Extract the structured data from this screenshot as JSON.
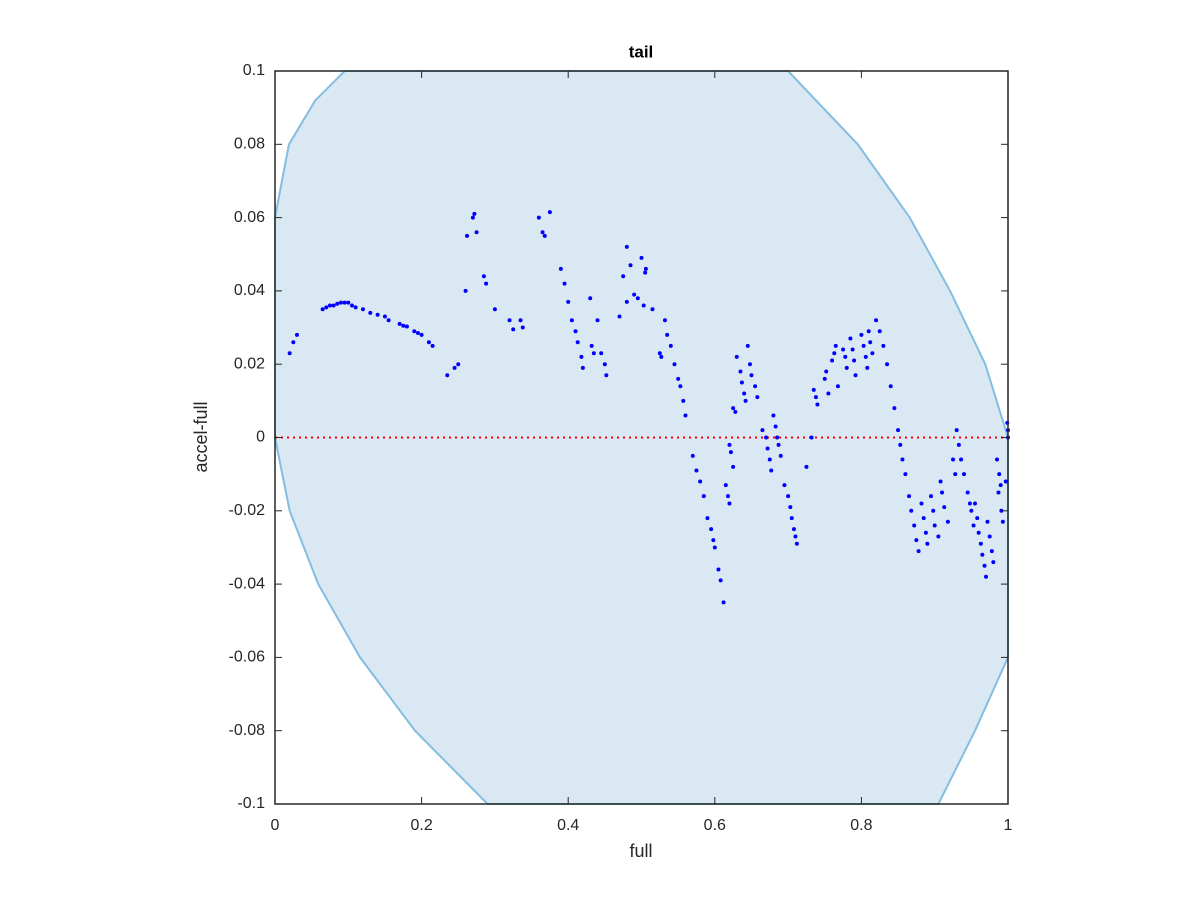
{
  "chart_data": {
    "type": "scatter",
    "title": "tail",
    "x_label": "full",
    "y_label": "accel-full",
    "xlim": [
      0,
      1
    ],
    "ylim": [
      -0.1,
      0.1
    ],
    "xticks": [
      0,
      0.2,
      0.4,
      0.6,
      0.8,
      1
    ],
    "yticks": [
      -0.1,
      -0.08,
      -0.06,
      -0.04,
      -0.02,
      0,
      0.02,
      0.04,
      0.06,
      0.08,
      0.1
    ],
    "reference_line": {
      "y": 0,
      "color": "#ff0000"
    },
    "region": {
      "color": "#d9e8f3",
      "edge_color": "#85bde0",
      "x": [
        0,
        0.019,
        0.055,
        0.095,
        0.7,
        0.795,
        0.866,
        0.921,
        0.969,
        1,
        1,
        0.955,
        0.905,
        0.29,
        0.191,
        0.116,
        0.059,
        0.02,
        0
      ],
      "y": [
        0.06,
        0.08,
        0.092,
        0.1,
        0.1,
        0.08,
        0.06,
        0.04,
        0.02,
        0,
        -0.06,
        -0.08,
        -0.1,
        -0.1,
        -0.08,
        -0.06,
        -0.04,
        -0.02,
        0
      ]
    },
    "series": [
      {
        "color": "#0000ff",
        "x": [
          0.02,
          0.025,
          0.03,
          0.065,
          0.07,
          0.075,
          0.08,
          0.085,
          0.09,
          0.095,
          0.1,
          0.105,
          0.11,
          0.12,
          0.13,
          0.14,
          0.15,
          0.155,
          0.17,
          0.175,
          0.18,
          0.19,
          0.195,
          0.2,
          0.21,
          0.215,
          0.235,
          0.245,
          0.25,
          0.26,
          0.262,
          0.27,
          0.272,
          0.275,
          0.285,
          0.288,
          0.3,
          0.32,
          0.325,
          0.335,
          0.338,
          0.36,
          0.365,
          0.368,
          0.375,
          0.39,
          0.395,
          0.4,
          0.405,
          0.41,
          0.413,
          0.418,
          0.42,
          0.43,
          0.432,
          0.435,
          0.44,
          0.445,
          0.45,
          0.452,
          0.47,
          0.475,
          0.48,
          0.485,
          0.48,
          0.49,
          0.495,
          0.5,
          0.505,
          0.506,
          0.503,
          0.515,
          0.525,
          0.527,
          0.532,
          0.535,
          0.54,
          0.545,
          0.55,
          0.553,
          0.557,
          0.56,
          0.57,
          0.575,
          0.58,
          0.585,
          0.59,
          0.595,
          0.598,
          0.6,
          0.605,
          0.608,
          0.612,
          0.615,
          0.618,
          0.62,
          0.62,
          0.625,
          0.628,
          0.622,
          0.625,
          0.63,
          0.635,
          0.637,
          0.64,
          0.642,
          0.645,
          0.648,
          0.65,
          0.655,
          0.658,
          0.665,
          0.67,
          0.672,
          0.675,
          0.677,
          0.68,
          0.683,
          0.685,
          0.687,
          0.69,
          0.695,
          0.7,
          0.703,
          0.705,
          0.708,
          0.71,
          0.712,
          0.725,
          0.732,
          0.735,
          0.738,
          0.74,
          0.75,
          0.752,
          0.755,
          0.76,
          0.763,
          0.765,
          0.768,
          0.775,
          0.778,
          0.78,
          0.785,
          0.788,
          0.79,
          0.792,
          0.8,
          0.803,
          0.806,
          0.808,
          0.81,
          0.812,
          0.815,
          0.82,
          0.825,
          0.83,
          0.835,
          0.84,
          0.845,
          0.85,
          0.853,
          0.856,
          0.86,
          0.865,
          0.868,
          0.872,
          0.875,
          0.878,
          0.882,
          0.885,
          0.888,
          0.89,
          0.895,
          0.898,
          0.9,
          0.905,
          0.908,
          0.91,
          0.913,
          0.918,
          0.925,
          0.928,
          0.93,
          0.933,
          0.936,
          0.94,
          0.945,
          0.948,
          0.95,
          0.953,
          0.955,
          0.958,
          0.96,
          0.963,
          0.965,
          0.968,
          0.97,
          0.972,
          0.975,
          0.978,
          0.98,
          0.985,
          0.988,
          0.99,
          0.987,
          0.991,
          0.993,
          0.997,
          0.999,
          1.0,
          1.0
        ],
        "y": [
          0.023,
          0.026,
          0.028,
          0.035,
          0.0355,
          0.036,
          0.036,
          0.0365,
          0.0368,
          0.0368,
          0.0368,
          0.036,
          0.0355,
          0.035,
          0.034,
          0.0335,
          0.033,
          0.032,
          0.031,
          0.0305,
          0.0303,
          0.029,
          0.0285,
          0.028,
          0.026,
          0.025,
          0.017,
          0.019,
          0.02,
          0.04,
          0.055,
          0.06,
          0.061,
          0.056,
          0.044,
          0.042,
          0.035,
          0.032,
          0.0295,
          0.032,
          0.03,
          0.06,
          0.056,
          0.055,
          0.0615,
          0.046,
          0.042,
          0.037,
          0.032,
          0.029,
          0.026,
          0.022,
          0.019,
          0.038,
          0.025,
          0.023,
          0.032,
          0.023,
          0.02,
          0.017,
          0.033,
          0.044,
          0.052,
          0.047,
          0.037,
          0.039,
          0.038,
          0.049,
          0.045,
          0.046,
          0.036,
          0.035,
          0.023,
          0.022,
          0.032,
          0.028,
          0.025,
          0.02,
          0.016,
          0.014,
          0.01,
          0.006,
          -0.005,
          -0.009,
          -0.012,
          -0.016,
          -0.022,
          -0.025,
          -0.028,
          -0.03,
          -0.036,
          -0.039,
          -0.045,
          -0.013,
          -0.016,
          -0.018,
          -0.002,
          0.008,
          0.007,
          -0.004,
          -0.008,
          0.022,
          0.018,
          0.015,
          0.012,
          0.01,
          0.025,
          0.02,
          0.017,
          0.014,
          0.011,
          0.002,
          0,
          -0.003,
          -0.006,
          -0.009,
          0.006,
          0.003,
          0,
          -0.002,
          -0.005,
          -0.013,
          -0.016,
          -0.019,
          -0.022,
          -0.025,
          -0.027,
          -0.029,
          -0.008,
          0,
          0.013,
          0.011,
          0.009,
          0.016,
          0.018,
          0.012,
          0.021,
          0.023,
          0.025,
          0.014,
          0.024,
          0.022,
          0.019,
          0.027,
          0.024,
          0.021,
          0.017,
          0.028,
          0.025,
          0.022,
          0.019,
          0.029,
          0.026,
          0.023,
          0.032,
          0.029,
          0.025,
          0.02,
          0.014,
          0.008,
          0.002,
          -0.002,
          -0.006,
          -0.01,
          -0.016,
          -0.02,
          -0.024,
          -0.028,
          -0.031,
          -0.018,
          -0.022,
          -0.026,
          -0.029,
          -0.016,
          -0.02,
          -0.024,
          -0.027,
          -0.012,
          -0.015,
          -0.019,
          -0.023,
          -0.006,
          -0.01,
          0.002,
          -0.002,
          -0.006,
          -0.01,
          -0.015,
          -0.018,
          -0.02,
          -0.024,
          -0.018,
          -0.022,
          -0.026,
          -0.029,
          -0.032,
          -0.035,
          -0.038,
          -0.023,
          -0.027,
          -0.031,
          -0.034,
          -0.006,
          -0.01,
          -0.013,
          -0.015,
          -0.02,
          -0.023,
          -0.012,
          0.004,
          0.002,
          0
        ]
      }
    ]
  }
}
